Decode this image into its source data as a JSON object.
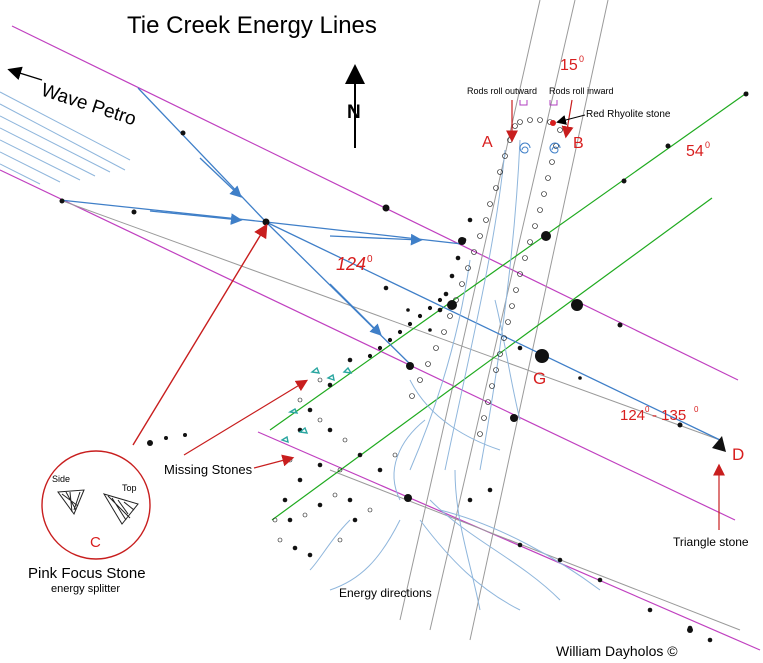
{
  "title": "Tie Creek Energy Lines",
  "labels": {
    "wave_petro": "Wave Petro",
    "north": "N",
    "angle_15": "15",
    "angle_54": "54",
    "angle_124": "124",
    "angle_range_a": "124",
    "angle_range_sep": "- 135",
    "degree": "0",
    "rods_outward": "Rods roll outward",
    "rods_inward": "Rods roll inward",
    "red_rhyolite": "Red Rhyolite stone",
    "point_a": "A",
    "point_b": "B",
    "point_c": "C",
    "point_d": "D",
    "point_g": "G",
    "missing_stones": "Missing Stones",
    "triangle_stone": "Triangle stone",
    "energy_directions": "Energy directions",
    "side": "Side",
    "top": "Top",
    "pink_focus_stone": "Pink Focus Stone",
    "energy_splitter": "energy splitter",
    "credit": "William Dayholos ©"
  },
  "colors": {
    "magenta_line": "#c040c0",
    "green_line": "#1faa1f",
    "blue_line": "#3f7fc8",
    "light_blue": "#8fb6dc",
    "red_text": "#d81e1e",
    "teal_stone": "#2aa6a0"
  }
}
